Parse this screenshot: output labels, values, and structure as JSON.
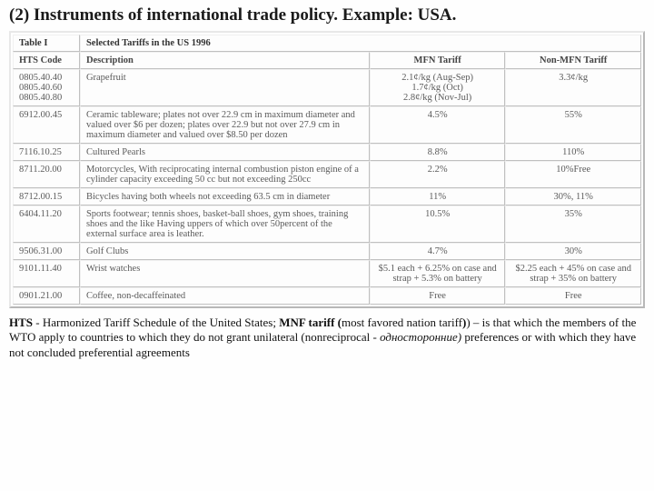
{
  "title": "(2) Instruments of international trade policy. Example: USA.",
  "table_caption": "Selected Tariffs in the US 1996",
  "table_label": "Table I",
  "headers": {
    "code": "HTS Code",
    "desc": "Description",
    "mfn": "MFN Tariff",
    "non": "Non-MFN Tariff"
  },
  "rows": [
    {
      "code": "0805.40.40",
      "desc": "Grapefruit",
      "mfn": "2.1¢/kg (Aug-Sep)",
      "non": "3.3¢/kg"
    },
    {
      "code": "0805.40.60",
      "desc": "",
      "mfn": "1.7¢/kg (Oct)",
      "non": ""
    },
    {
      "code": "0805.40.80",
      "desc": "",
      "mfn": "2.8¢/kg (Nov-Jul)",
      "non": ""
    },
    {
      "code": "6912.00.45",
      "desc": "Ceramic tableware; plates not over 22.9 cm in maximum diameter and valued over $6 per dozen; plates over 22.9 but not over 27.9 cm in maximum diameter and valued over $8.50 per dozen",
      "mfn": "4.5%",
      "non": "55%"
    },
    {
      "code": "7116.10.25",
      "desc": "Cultured Pearls",
      "mfn": "8.8%",
      "non": "110%"
    },
    {
      "code": "8711.20.00",
      "desc": "Motorcycles, With reciprocating internal combustion piston engine of a cylinder capacity exceeding 50 cc but not exceeding 250cc",
      "mfn": "2.2%",
      "non": "10%Free"
    },
    {
      "code": "8712.00.15",
      "desc": "Bicycles having both wheels not exceeding 63.5 cm in diameter",
      "mfn": "11%",
      "non": "30%, 11%"
    },
    {
      "code": "6404.11.20",
      "desc": "Sports footwear; tennis shoes, basket-ball shoes, gym shoes, training shoes and the like Having uppers of which over 50percent of the external surface area is leather.",
      "mfn": "10.5%",
      "non": "35%"
    },
    {
      "code": "9506.31.00",
      "desc": "Golf Clubs",
      "mfn": "4.7%",
      "non": "30%"
    },
    {
      "code": "9101.11.40",
      "desc": "Wrist watches",
      "mfn": "$5.1 each + 6.25% on case and strap + 5.3% on battery",
      "non": "$2.25 each + 45% on case and strap + 35% on battery"
    },
    {
      "code": "0901.21.00",
      "desc": "Coffee, non-decaffeinated",
      "mfn": "Free",
      "non": "Free"
    }
  ],
  "footnote": {
    "hts_label": "HTS",
    "hts_text": " - Harmonized Tariff Schedule of the United States; ",
    "mnf_label": "MNF tariff (",
    "mnf_text1": "most favored nation tariff",
    "mnf_text2": ") – is that which the members of the WTO apply to countries to which they do not grant unilateral  (nonreciprocal - ",
    "italic": "односторонние)",
    "tail": " preferences or with which they have not concluded preferential agreements"
  },
  "style": {
    "colors": {
      "background": "#fefefe",
      "border_light": "#e8e8e8",
      "border_dark": "#b8b8b8",
      "cell_text": "#5a5a5a",
      "title_text": "#1a1a1a"
    },
    "fontsizes": {
      "title": 19,
      "table": 10.5,
      "foot": 13
    }
  }
}
